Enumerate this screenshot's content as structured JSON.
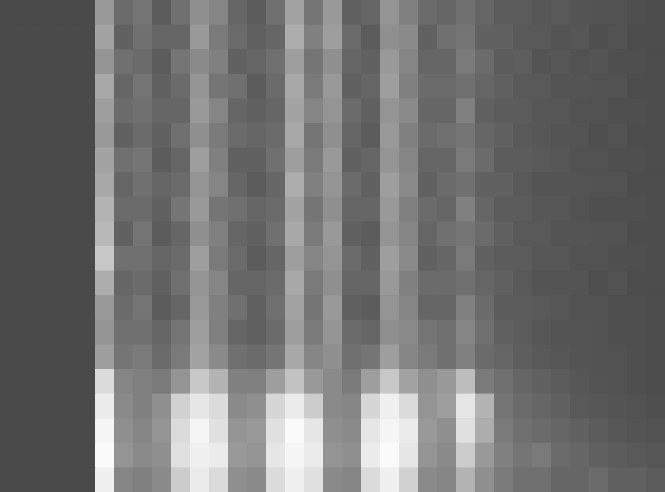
{
  "chart_data": {
    "type": "heatmap",
    "xlim": [
      0,
      35
    ],
    "ylim": [
      0,
      20
    ],
    "zlim": [
      0,
      100
    ],
    "tick_labels": false,
    "cells": [
      [
        29,
        29,
        29,
        29,
        29,
        60,
        42,
        46,
        36,
        44,
        56,
        52,
        40,
        36,
        44,
        64,
        46,
        60,
        38,
        40,
        58,
        50,
        42,
        40,
        44,
        40,
        36,
        36,
        34,
        35,
        33,
        32,
        32,
        31,
        30
      ],
      [
        29,
        29,
        29,
        29,
        29,
        64,
        38,
        44,
        40,
        40,
        60,
        48,
        42,
        38,
        40,
        68,
        50,
        62,
        42,
        36,
        56,
        54,
        38,
        44,
        46,
        38,
        38,
        35,
        35,
        33,
        34,
        31,
        32,
        30,
        30
      ],
      [
        29,
        29,
        29,
        29,
        29,
        58,
        44,
        42,
        36,
        46,
        54,
        50,
        38,
        40,
        44,
        62,
        46,
        56,
        40,
        38,
        60,
        52,
        40,
        40,
        48,
        42,
        36,
        37,
        33,
        34,
        32,
        33,
        31,
        31,
        30
      ],
      [
        29,
        29,
        29,
        29,
        29,
        66,
        40,
        46,
        38,
        42,
        58,
        46,
        44,
        36,
        42,
        66,
        48,
        60,
        38,
        40,
        62,
        50,
        42,
        42,
        44,
        40,
        38,
        35,
        35,
        33,
        33,
        32,
        32,
        30,
        30
      ],
      [
        29,
        29,
        29,
        29,
        29,
        62,
        42,
        44,
        40,
        40,
        60,
        52,
        40,
        38,
        40,
        64,
        52,
        58,
        42,
        38,
        58,
        54,
        40,
        40,
        50,
        38,
        36,
        36,
        34,
        34,
        32,
        32,
        31,
        31,
        30
      ],
      [
        29,
        29,
        29,
        29,
        29,
        60,
        38,
        42,
        38,
        44,
        56,
        48,
        42,
        40,
        42,
        66,
        46,
        56,
        40,
        36,
        60,
        50,
        42,
        44,
        46,
        40,
        38,
        35,
        34,
        33,
        33,
        31,
        32,
        30,
        30
      ],
      [
        29,
        29,
        29,
        29,
        29,
        64,
        44,
        46,
        36,
        40,
        62,
        50,
        38,
        38,
        44,
        62,
        48,
        60,
        38,
        40,
        58,
        52,
        40,
        40,
        48,
        42,
        36,
        36,
        35,
        34,
        32,
        32,
        31,
        31,
        30
      ],
      [
        29,
        29,
        29,
        29,
        29,
        66,
        40,
        44,
        40,
        42,
        58,
        52,
        40,
        36,
        40,
        68,
        50,
        58,
        42,
        38,
        62,
        54,
        38,
        42,
        44,
        38,
        38,
        35,
        33,
        33,
        33,
        32,
        32,
        30,
        30
      ],
      [
        29,
        29,
        29,
        29,
        29,
        70,
        42,
        42,
        38,
        46,
        60,
        46,
        44,
        40,
        42,
        64,
        46,
        56,
        40,
        40,
        60,
        50,
        42,
        40,
        50,
        40,
        36,
        36,
        34,
        34,
        32,
        31,
        31,
        31,
        30
      ],
      [
        29,
        29,
        29,
        29,
        29,
        72,
        38,
        46,
        36,
        40,
        56,
        50,
        40,
        38,
        44,
        66,
        48,
        60,
        38,
        36,
        58,
        52,
        40,
        44,
        46,
        42,
        38,
        35,
        35,
        33,
        33,
        32,
        32,
        30,
        30
      ],
      [
        29,
        29,
        29,
        29,
        29,
        78,
        44,
        44,
        40,
        42,
        62,
        48,
        42,
        36,
        40,
        62,
        52,
        58,
        42,
        38,
        62,
        54,
        38,
        40,
        48,
        38,
        36,
        36,
        34,
        34,
        32,
        32,
        31,
        31,
        30
      ],
      [
        29,
        29,
        29,
        29,
        29,
        68,
        40,
        42,
        38,
        44,
        58,
        52,
        40,
        40,
        42,
        66,
        48,
        56,
        40,
        40,
        60,
        50,
        42,
        42,
        44,
        40,
        38,
        35,
        33,
        33,
        33,
        31,
        32,
        30,
        30
      ],
      [
        29,
        29,
        29,
        29,
        29,
        60,
        42,
        46,
        36,
        40,
        60,
        50,
        44,
        38,
        44,
        64,
        46,
        60,
        38,
        36,
        58,
        52,
        40,
        40,
        50,
        42,
        36,
        36,
        35,
        34,
        32,
        32,
        31,
        31,
        30
      ],
      [
        29,
        29,
        29,
        29,
        29,
        58,
        44,
        44,
        40,
        46,
        62,
        50,
        40,
        38,
        42,
        62,
        48,
        58,
        42,
        40,
        56,
        54,
        46,
        44,
        52,
        44,
        38,
        36,
        34,
        33,
        33,
        32,
        31,
        31,
        30
      ],
      [
        29,
        29,
        29,
        29,
        29,
        62,
        46,
        48,
        42,
        48,
        64,
        54,
        44,
        42,
        46,
        66,
        52,
        56,
        44,
        46,
        62,
        52,
        48,
        44,
        50,
        42,
        40,
        37,
        35,
        34,
        33,
        32,
        32,
        31,
        30
      ],
      [
        29,
        29,
        29,
        29,
        29,
        86,
        52,
        50,
        48,
        58,
        78,
        70,
        50,
        50,
        62,
        76,
        60,
        54,
        48,
        62,
        78,
        64,
        56,
        60,
        74,
        48,
        44,
        40,
        38,
        36,
        34,
        33,
        32,
        31,
        30
      ],
      [
        29,
        29,
        29,
        29,
        29,
        92,
        54,
        50,
        56,
        82,
        90,
        86,
        54,
        56,
        84,
        92,
        80,
        54,
        52,
        84,
        94,
        86,
        58,
        62,
        90,
        70,
        46,
        42,
        40,
        38,
        35,
        34,
        33,
        32,
        31
      ],
      [
        29,
        29,
        29,
        29,
        29,
        96,
        56,
        52,
        58,
        86,
        96,
        88,
        58,
        60,
        88,
        98,
        90,
        56,
        54,
        90,
        96,
        92,
        60,
        56,
        88,
        68,
        48,
        44,
        42,
        40,
        38,
        36,
        34,
        33,
        32
      ],
      [
        29,
        29,
        29,
        29,
        29,
        98,
        58,
        54,
        56,
        88,
        94,
        92,
        60,
        58,
        90,
        96,
        92,
        58,
        56,
        92,
        98,
        90,
        58,
        54,
        80,
        60,
        50,
        46,
        48,
        42,
        40,
        38,
        36,
        35,
        34
      ],
      [
        29,
        29,
        29,
        29,
        29,
        94,
        52,
        50,
        54,
        80,
        92,
        86,
        56,
        54,
        86,
        94,
        88,
        54,
        52,
        86,
        94,
        82,
        54,
        52,
        70,
        56,
        48,
        44,
        44,
        40,
        40,
        42,
        38,
        38,
        36
      ]
    ]
  }
}
